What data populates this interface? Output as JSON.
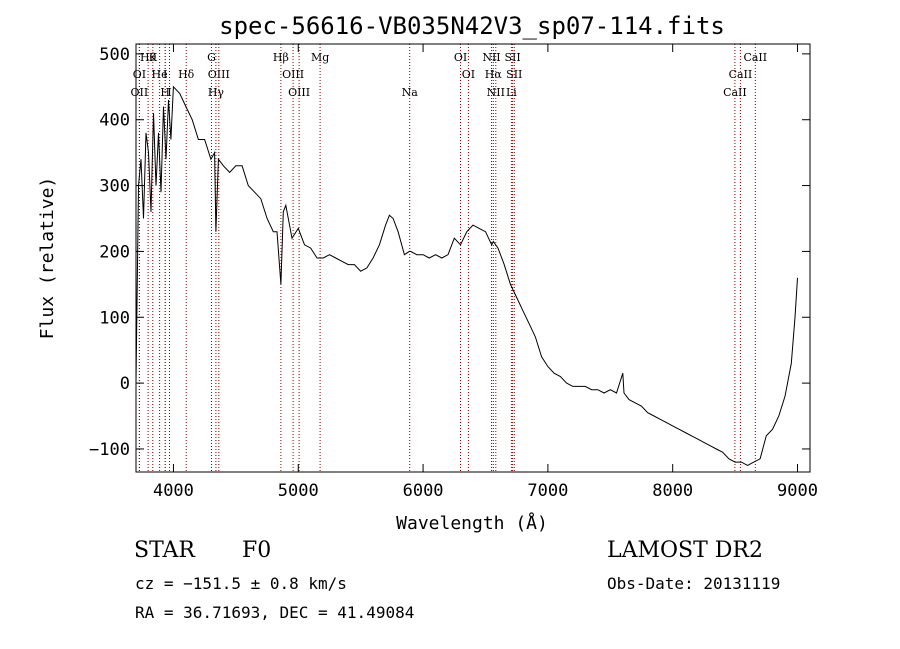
{
  "chart_data": {
    "type": "line",
    "title": "spec-56616-VB035N42V3_sp07-114.fits",
    "xlabel": "Wavelength (Å)",
    "ylabel": "Flux (relative)",
    "xlim": [
      3700,
      9100
    ],
    "ylim": [
      -135,
      515
    ],
    "x_ticks": [
      4000,
      5000,
      6000,
      7000,
      8000,
      9000
    ],
    "y_ticks": [
      -100,
      0,
      100,
      200,
      300,
      400,
      500
    ],
    "grid": false,
    "line_color": "#000000",
    "marker_color": "#8b0000",
    "series": [
      {
        "x": [
          3700,
          3720,
          3740,
          3760,
          3780,
          3800,
          3820,
          3840,
          3860,
          3880,
          3900,
          3920,
          3940,
          3960,
          3980,
          4000,
          4050,
          4100,
          4150,
          4200,
          4250,
          4300,
          4330,
          4340,
          4360,
          4400,
          4450,
          4500,
          4550,
          4600,
          4650,
          4700,
          4750,
          4800,
          4830,
          4861,
          4880,
          4900,
          4950,
          5000,
          5050,
          5100,
          5150,
          5200,
          5250,
          5300,
          5350,
          5400,
          5450,
          5500,
          5550,
          5600,
          5650,
          5700,
          5730,
          5760,
          5800,
          5850,
          5890,
          5900,
          5950,
          6000,
          6050,
          6100,
          6150,
          6200,
          6250,
          6300,
          6350,
          6400,
          6450,
          6500,
          6550,
          6563,
          6600,
          6650,
          6700,
          6750,
          6800,
          6850,
          6900,
          6950,
          7000,
          7050,
          7100,
          7150,
          7200,
          7250,
          7300,
          7350,
          7400,
          7450,
          7500,
          7550,
          7600,
          7610,
          7650,
          7700,
          7750,
          7800,
          7850,
          7900,
          7950,
          8000,
          8050,
          8100,
          8150,
          8200,
          8250,
          8300,
          8350,
          8400,
          8450,
          8500,
          8550,
          8600,
          8650,
          8700,
          8750,
          8800,
          8850,
          8900,
          8950,
          8980,
          9000
        ],
        "y": [
          0,
          300,
          340,
          250,
          380,
          350,
          260,
          410,
          300,
          380,
          290,
          420,
          340,
          430,
          370,
          450,
          440,
          420,
          400,
          370,
          370,
          340,
          350,
          230,
          340,
          330,
          320,
          330,
          330,
          300,
          290,
          280,
          250,
          230,
          230,
          150,
          260,
          270,
          220,
          235,
          210,
          205,
          190,
          190,
          195,
          190,
          185,
          180,
          180,
          170,
          175,
          190,
          210,
          240,
          255,
          250,
          230,
          195,
          200,
          200,
          195,
          195,
          190,
          195,
          190,
          195,
          220,
          210,
          230,
          240,
          235,
          230,
          210,
          215,
          205,
          180,
          150,
          130,
          110,
          90,
          70,
          40,
          25,
          15,
          10,
          0,
          -5,
          -5,
          -5,
          -10,
          -10,
          -15,
          -10,
          -15,
          15,
          -15,
          -25,
          -30,
          -35,
          -45,
          -50,
          -55,
          -60,
          -65,
          -70,
          -75,
          -80,
          -85,
          -90,
          -95,
          -100,
          -105,
          -115,
          -120,
          -120,
          -125,
          -120,
          -115,
          -80,
          -70,
          -50,
          -20,
          30,
          100,
          160
        ]
      }
    ],
    "line_markers": [
      {
        "wave": 3797,
        "label": "Hθ",
        "row": 1
      },
      {
        "wave": 3835,
        "label": "K",
        "row": 1
      },
      {
        "wave": 4305,
        "label": "G",
        "row": 1
      },
      {
        "wave": 4861,
        "label": "Hβ",
        "row": 1
      },
      {
        "wave": 5175,
        "label": "Mg",
        "row": 1
      },
      {
        "wave": 6300,
        "label": "OI",
        "row": 1
      },
      {
        "wave": 6548,
        "label": "NII",
        "row": 1
      },
      {
        "wave": 6717,
        "label": "SII",
        "row": 1
      },
      {
        "wave": 8662,
        "label": "CaII",
        "row": 1
      },
      {
        "wave": 3727,
        "label": "OI",
        "row": 2
      },
      {
        "wave": 3889,
        "label": "He",
        "row": 2
      },
      {
        "wave": 3934,
        "label": "I",
        "row": 2
      },
      {
        "wave": 4102,
        "label": "Hδ",
        "row": 2
      },
      {
        "wave": 4363,
        "label": "OIII",
        "row": 2
      },
      {
        "wave": 4959,
        "label": "OIII",
        "row": 2
      },
      {
        "wave": 6363,
        "label": "OI",
        "row": 2
      },
      {
        "wave": 6563,
        "label": "Hα",
        "row": 2
      },
      {
        "wave": 6731,
        "label": "SII",
        "row": 2
      },
      {
        "wave": 8542,
        "label": "CaII",
        "row": 2
      },
      {
        "wave": 3727,
        "label": "OII",
        "row": 3
      },
      {
        "wave": 3934,
        "label": "H",
        "row": 3
      },
      {
        "wave": 3968,
        "label": "I",
        "row": 3
      },
      {
        "wave": 4340,
        "label": "Hγ",
        "row": 3
      },
      {
        "wave": 5007,
        "label": "OIII",
        "row": 3
      },
      {
        "wave": 5893,
        "label": "Na",
        "row": 3
      },
      {
        "wave": 6583,
        "label": "NII",
        "row": 3
      },
      {
        "wave": 6708,
        "label": "Li",
        "row": 3
      },
      {
        "wave": 8498,
        "label": "CaII",
        "row": 3
      }
    ]
  },
  "info": {
    "object_class": "STAR",
    "subclass": "F0",
    "cz": "cz = −151.5 ± 0.8 km/s",
    "coords": "RA =  36.71693, DEC =  41.49084",
    "survey": "LAMOST DR2",
    "obs_date": "Obs-Date: 20131119"
  }
}
